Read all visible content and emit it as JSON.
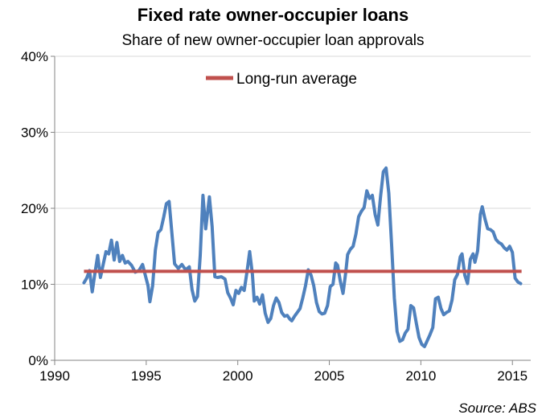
{
  "chart_data": {
    "type": "line",
    "title": "Fixed rate owner-occupier loans",
    "subtitle": "Share of new owner-occupier loan approvals",
    "source": "Source: ABS",
    "xlabel": "",
    "ylabel": "",
    "xlim": [
      1990,
      2016
    ],
    "ylim": [
      0,
      40
    ],
    "x_ticks": [
      1990,
      1995,
      2000,
      2005,
      2010,
      2015
    ],
    "y_ticks": [
      0,
      10,
      20,
      30,
      40
    ],
    "y_tick_labels": [
      "0%",
      "10%",
      "20%",
      "30%",
      "40%"
    ],
    "grid": "horizontal",
    "legend": "top-center",
    "colors": {
      "share": "#4f81bd",
      "average": "#c0504d",
      "grid": "#d9d9d9",
      "axis": "#868686"
    },
    "series": [
      {
        "key": "share",
        "values": [
          [
            1991.6,
            10.2
          ],
          [
            1991.75,
            10.8
          ],
          [
            1991.9,
            11.8
          ],
          [
            1992.05,
            9.0
          ],
          [
            1992.2,
            11.5
          ],
          [
            1992.35,
            13.8
          ],
          [
            1992.5,
            10.9
          ],
          [
            1992.65,
            12.6
          ],
          [
            1992.8,
            14.3
          ],
          [
            1992.95,
            14.0
          ],
          [
            1993.1,
            15.8
          ],
          [
            1993.25,
            13.2
          ],
          [
            1993.4,
            15.5
          ],
          [
            1993.55,
            13.0
          ],
          [
            1993.7,
            13.8
          ],
          [
            1993.85,
            12.8
          ],
          [
            1994.0,
            13.0
          ],
          [
            1994.2,
            12.5
          ],
          [
            1994.4,
            11.6
          ],
          [
            1994.6,
            11.8
          ],
          [
            1994.8,
            12.6
          ],
          [
            1994.95,
            11.2
          ],
          [
            1995.1,
            9.8
          ],
          [
            1995.2,
            7.7
          ],
          [
            1995.35,
            9.8
          ],
          [
            1995.5,
            14.5
          ],
          [
            1995.65,
            16.8
          ],
          [
            1995.8,
            17.2
          ],
          [
            1995.95,
            18.8
          ],
          [
            1996.1,
            20.6
          ],
          [
            1996.25,
            20.9
          ],
          [
            1996.4,
            16.8
          ],
          [
            1996.55,
            12.7
          ],
          [
            1996.75,
            12.1
          ],
          [
            1996.95,
            12.6
          ],
          [
            1997.15,
            11.9
          ],
          [
            1997.35,
            12.3
          ],
          [
            1997.5,
            9.3
          ],
          [
            1997.65,
            7.8
          ],
          [
            1997.8,
            8.4
          ],
          [
            1997.95,
            13.8
          ],
          [
            1998.1,
            21.7
          ],
          [
            1998.25,
            17.3
          ],
          [
            1998.45,
            21.5
          ],
          [
            1998.6,
            17.6
          ],
          [
            1998.75,
            11.0
          ],
          [
            1998.9,
            10.9
          ],
          [
            1999.1,
            11.0
          ],
          [
            1999.3,
            10.7
          ],
          [
            1999.45,
            8.9
          ],
          [
            1999.6,
            8.2
          ],
          [
            1999.75,
            7.3
          ],
          [
            1999.9,
            9.2
          ],
          [
            2000.05,
            8.8
          ],
          [
            2000.2,
            9.6
          ],
          [
            2000.35,
            9.2
          ],
          [
            2000.5,
            11.6
          ],
          [
            2000.65,
            14.3
          ],
          [
            2000.8,
            11.3
          ],
          [
            2000.9,
            7.8
          ],
          [
            2001.05,
            8.3
          ],
          [
            2001.2,
            7.4
          ],
          [
            2001.35,
            8.6
          ],
          [
            2001.5,
            6.2
          ],
          [
            2001.65,
            5.0
          ],
          [
            2001.8,
            5.5
          ],
          [
            2001.95,
            7.2
          ],
          [
            2002.1,
            8.2
          ],
          [
            2002.25,
            7.6
          ],
          [
            2002.4,
            6.3
          ],
          [
            2002.55,
            5.8
          ],
          [
            2002.7,
            5.9
          ],
          [
            2002.85,
            5.4
          ],
          [
            2002.95,
            5.2
          ],
          [
            2003.1,
            5.8
          ],
          [
            2003.25,
            6.3
          ],
          [
            2003.4,
            6.8
          ],
          [
            2003.55,
            8.2
          ],
          [
            2003.7,
            9.8
          ],
          [
            2003.85,
            11.9
          ],
          [
            2004.0,
            11.2
          ],
          [
            2004.15,
            9.8
          ],
          [
            2004.3,
            7.6
          ],
          [
            2004.45,
            6.4
          ],
          [
            2004.6,
            6.1
          ],
          [
            2004.75,
            6.2
          ],
          [
            2004.9,
            7.2
          ],
          [
            2005.05,
            9.7
          ],
          [
            2005.2,
            10.0
          ],
          [
            2005.35,
            12.8
          ],
          [
            2005.45,
            12.5
          ],
          [
            2005.6,
            10.4
          ],
          [
            2005.75,
            8.8
          ],
          [
            2005.9,
            11.6
          ],
          [
            2006.0,
            13.9
          ],
          [
            2006.15,
            14.6
          ],
          [
            2006.3,
            15.0
          ],
          [
            2006.45,
            16.6
          ],
          [
            2006.6,
            18.9
          ],
          [
            2006.75,
            19.6
          ],
          [
            2006.9,
            20.1
          ],
          [
            2007.05,
            22.3
          ],
          [
            2007.2,
            21.3
          ],
          [
            2007.35,
            21.7
          ],
          [
            2007.5,
            19.2
          ],
          [
            2007.65,
            17.8
          ],
          [
            2007.8,
            21.6
          ],
          [
            2007.95,
            24.8
          ],
          [
            2008.1,
            25.3
          ],
          [
            2008.25,
            22.0
          ],
          [
            2008.4,
            15.2
          ],
          [
            2008.55,
            8.2
          ],
          [
            2008.7,
            3.8
          ],
          [
            2008.85,
            2.5
          ],
          [
            2009.0,
            2.7
          ],
          [
            2009.15,
            3.6
          ],
          [
            2009.3,
            4.1
          ],
          [
            2009.45,
            7.2
          ],
          [
            2009.6,
            6.9
          ],
          [
            2009.75,
            4.9
          ],
          [
            2009.9,
            3.0
          ],
          [
            2010.05,
            2.1
          ],
          [
            2010.2,
            1.8
          ],
          [
            2010.35,
            2.6
          ],
          [
            2010.5,
            3.4
          ],
          [
            2010.65,
            4.3
          ],
          [
            2010.8,
            8.1
          ],
          [
            2010.95,
            8.3
          ],
          [
            2011.1,
            6.8
          ],
          [
            2011.25,
            6.0
          ],
          [
            2011.4,
            6.3
          ],
          [
            2011.55,
            6.5
          ],
          [
            2011.7,
            7.9
          ],
          [
            2011.85,
            10.6
          ],
          [
            2012.0,
            11.3
          ],
          [
            2012.15,
            13.6
          ],
          [
            2012.25,
            14.0
          ],
          [
            2012.4,
            11.2
          ],
          [
            2012.55,
            10.1
          ],
          [
            2012.7,
            13.3
          ],
          [
            2012.85,
            14.0
          ],
          [
            2012.95,
            12.9
          ],
          [
            2013.1,
            14.4
          ],
          [
            2013.25,
            19.2
          ],
          [
            2013.35,
            20.2
          ],
          [
            2013.5,
            18.6
          ],
          [
            2013.65,
            17.3
          ],
          [
            2013.8,
            17.2
          ],
          [
            2013.95,
            16.9
          ],
          [
            2014.1,
            15.9
          ],
          [
            2014.25,
            15.5
          ],
          [
            2014.4,
            15.3
          ],
          [
            2014.55,
            14.8
          ],
          [
            2014.7,
            14.5
          ],
          [
            2014.85,
            15.0
          ],
          [
            2015.0,
            14.2
          ],
          [
            2015.15,
            10.8
          ],
          [
            2015.3,
            10.3
          ],
          [
            2015.45,
            10.1
          ]
        ]
      },
      {
        "key": "average",
        "name": "Long-run average",
        "values": [
          [
            1991.6,
            11.7
          ],
          [
            2015.5,
            11.7
          ]
        ]
      }
    ]
  }
}
